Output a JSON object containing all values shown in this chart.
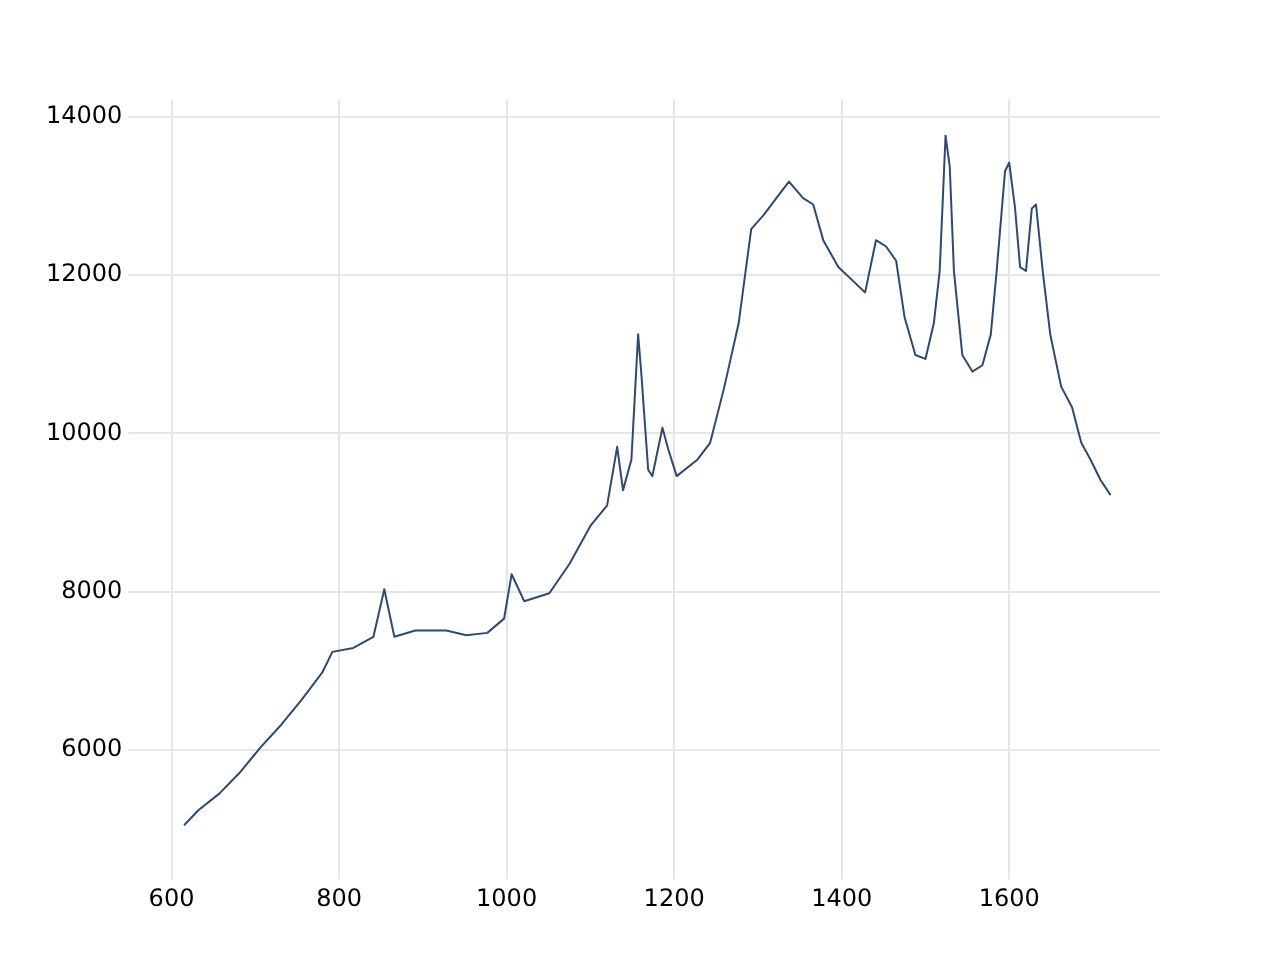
{
  "chart_data": {
    "type": "line",
    "x": [
      615,
      632,
      657,
      681,
      706,
      731,
      755,
      780,
      792,
      817,
      841,
      854,
      866,
      891,
      928,
      952,
      977,
      997,
      1006,
      1021,
      1051,
      1075,
      1100,
      1120,
      1132,
      1139,
      1149,
      1157,
      1161,
      1169,
      1174,
      1186,
      1193,
      1203,
      1228,
      1243,
      1260,
      1277,
      1292,
      1307,
      1322,
      1337,
      1354,
      1366,
      1378,
      1396,
      1415,
      1428,
      1441,
      1453,
      1465,
      1475,
      1488,
      1500,
      1510,
      1517,
      1524,
      1529,
      1534,
      1544,
      1556,
      1568,
      1578,
      1585,
      1595,
      1600,
      1607,
      1613,
      1620,
      1627,
      1632,
      1640,
      1649,
      1662,
      1675,
      1686,
      1697,
      1709,
      1721
    ],
    "series": [
      {
        "color": "#2e4a6e",
        "values": [
          5050,
          5240,
          5450,
          5710,
          6030,
          6320,
          6630,
          6980,
          7240,
          7290,
          7430,
          8030,
          7430,
          7510,
          7510,
          7450,
          7480,
          7660,
          8220,
          7880,
          7980,
          8350,
          8830,
          9090,
          9830,
          9280,
          9670,
          11250,
          10730,
          9540,
          9460,
          10070,
          9800,
          9460,
          9670,
          9880,
          10590,
          11390,
          12580,
          12760,
          12970,
          13180,
          12970,
          12890,
          12440,
          12100,
          11910,
          11780,
          12440,
          12360,
          12180,
          11470,
          10990,
          10940,
          11390,
          12050,
          13760,
          13370,
          12050,
          10990,
          10780,
          10860,
          11250,
          12050,
          13310,
          13420,
          12840,
          12100,
          12050,
          12840,
          12890,
          12050,
          11250,
          10590,
          10330,
          9880,
          9670,
          9410,
          9220
        ]
      }
    ],
    "xlim": [
      558,
      1780
    ],
    "ylim": [
      4470,
      14210
    ],
    "xticks": [
      600,
      800,
      1000,
      1200,
      1400,
      1600
    ],
    "yticks": [
      6000,
      8000,
      10000,
      12000,
      14000
    ],
    "grid": true,
    "legend": false,
    "marker": "none",
    "line_style": "solid"
  }
}
